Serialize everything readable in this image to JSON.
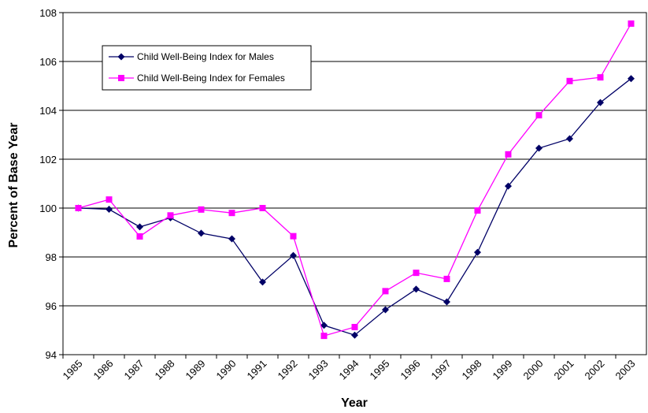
{
  "chart_data": {
    "type": "line",
    "x_label": "Year",
    "y_label": "Percent of Base Year",
    "categories": [
      "1985",
      "1986",
      "1987",
      "1988",
      "1989",
      "1990",
      "1991",
      "1992",
      "1993",
      "1994",
      "1995",
      "1996",
      "1997",
      "1998",
      "1999",
      "2000",
      "2001",
      "2002",
      "2003"
    ],
    "series": [
      {
        "name": "Child Well-Being Index for Males",
        "color": "#000066",
        "marker": "diamond",
        "values": [
          100,
          99.95,
          99.23,
          99.6,
          98.97,
          98.74,
          96.97,
          98.06,
          95.2,
          94.8,
          95.84,
          96.68,
          96.16,
          98.19,
          100.9,
          102.45,
          102.84,
          104.32,
          105.3
        ]
      },
      {
        "name": "Child Well-Being Index for Females",
        "color": "#ff00ff",
        "marker": "square",
        "values": [
          100,
          100.35,
          98.84,
          99.7,
          99.94,
          99.8,
          100,
          98.85,
          94.77,
          95.13,
          96.6,
          97.35,
          97.1,
          99.9,
          102.2,
          103.8,
          105.2,
          105.35,
          107.55
        ]
      }
    ],
    "ylim": [
      94,
      108
    ],
    "yticks": [
      94,
      96,
      98,
      100,
      102,
      104,
      106,
      108
    ],
    "grid": true,
    "legend": "upper-left"
  }
}
